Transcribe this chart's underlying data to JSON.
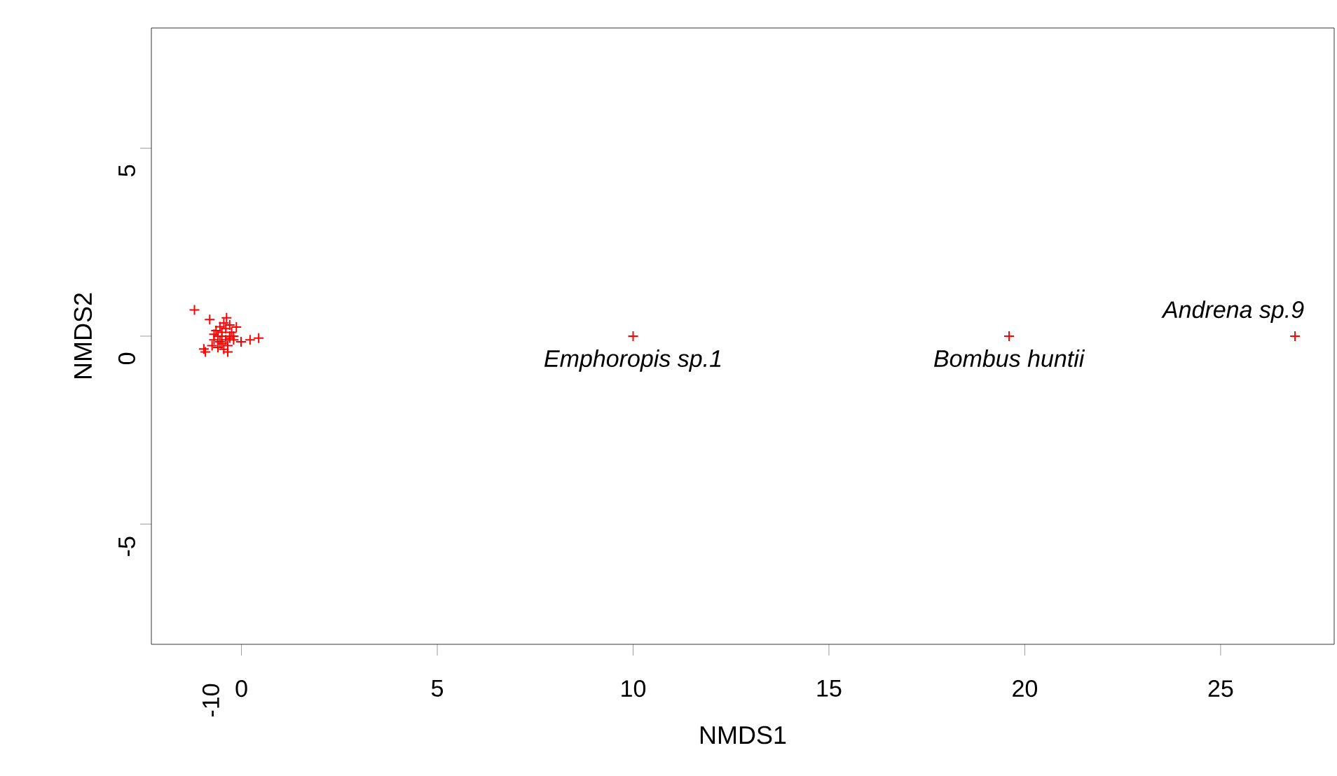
{
  "chart_data": {
    "type": "scatter",
    "xlabel": "NMDS1",
    "ylabel": "NMDS2",
    "xlim": [
      -2.3,
      27.9
    ],
    "ylim": [
      -8.2,
      8.2
    ],
    "xticks": [
      0,
      5,
      10,
      15,
      20,
      25
    ],
    "yticks": [
      -5,
      0,
      5
    ],
    "marker": "cross",
    "grid": false,
    "series": [
      {
        "color": "#ff0000",
        "x": [
          -1.2,
          -0.81,
          -0.38,
          -0.13,
          0.44,
          0.22,
          -0.01,
          -0.92,
          -0.96,
          -0.6,
          -0.5,
          -0.4,
          -0.3,
          -0.7,
          -0.55,
          -0.45,
          -0.35,
          -0.25,
          -0.65,
          -0.5,
          -0.4,
          -0.3,
          -0.2,
          -0.6,
          -0.45,
          -0.35,
          -0.55,
          -0.75,
          -0.7,
          -0.5,
          -0.3,
          -0.2,
          10.0,
          19.6,
          26.9
        ],
        "values": [
          0.7,
          0.44,
          0.49,
          0.24,
          -0.05,
          -0.1,
          -0.15,
          -0.42,
          -0.34,
          0.0,
          0.1,
          0.2,
          0.3,
          -0.1,
          0.25,
          0.35,
          -0.42,
          0.1,
          0.15,
          -0.2,
          -0.1,
          -0.05,
          -0.1,
          -0.3,
          -0.35,
          -0.25,
          -0.15,
          -0.25,
          0.05,
          0.0,
          0.0,
          0.0,
          0.0,
          0.0,
          0.0
        ]
      }
    ],
    "annotations": [
      {
        "text": "*Emphoropis sp.1*",
        "x": 10.0,
        "y": 0.0
      },
      {
        "text": "*Bombus huntii*",
        "x": 19.6,
        "y": 0.0
      },
      {
        "text": "*Andrena sp.9*",
        "x": 26.9,
        "y": 0.0
      },
      "-10"
    ]
  }
}
